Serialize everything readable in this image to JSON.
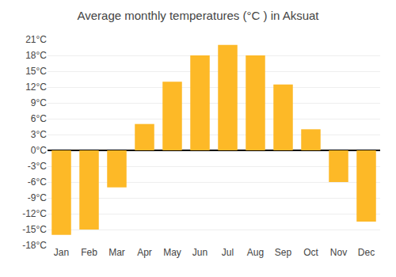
{
  "chart_data": {
    "type": "bar",
    "title": "Average monthly temperatures (°C ) in Aksuat",
    "categories": [
      "Jan",
      "Feb",
      "Mar",
      "Apr",
      "May",
      "Jun",
      "Jul",
      "Aug",
      "Sep",
      "Oct",
      "Nov",
      "Dec"
    ],
    "values": [
      -16,
      -15,
      -7,
      5,
      13,
      18,
      20,
      18,
      12.5,
      4,
      -6,
      -13.5
    ],
    "color": "#FDB927",
    "ylim": [
      -18,
      21
    ],
    "yticks": [
      {
        "value": -18,
        "label": "-18°C"
      },
      {
        "value": -15,
        "label": "-15°C"
      },
      {
        "value": -12,
        "label": "-12°C"
      },
      {
        "value": -9,
        "label": "-9°C"
      },
      {
        "value": -6,
        "label": "-6°C"
      },
      {
        "value": -3,
        "label": "-3°C"
      },
      {
        "value": 0,
        "label": "0°C"
      },
      {
        "value": 3,
        "label": "3°C"
      },
      {
        "value": 6,
        "label": "6°C"
      },
      {
        "value": 9,
        "label": "9°C"
      },
      {
        "value": 12,
        "label": "12°C"
      },
      {
        "value": 15,
        "label": "15°C"
      },
      {
        "value": 18,
        "label": "18°C"
      },
      {
        "value": 21,
        "label": "21°C"
      }
    ],
    "grid": true
  }
}
